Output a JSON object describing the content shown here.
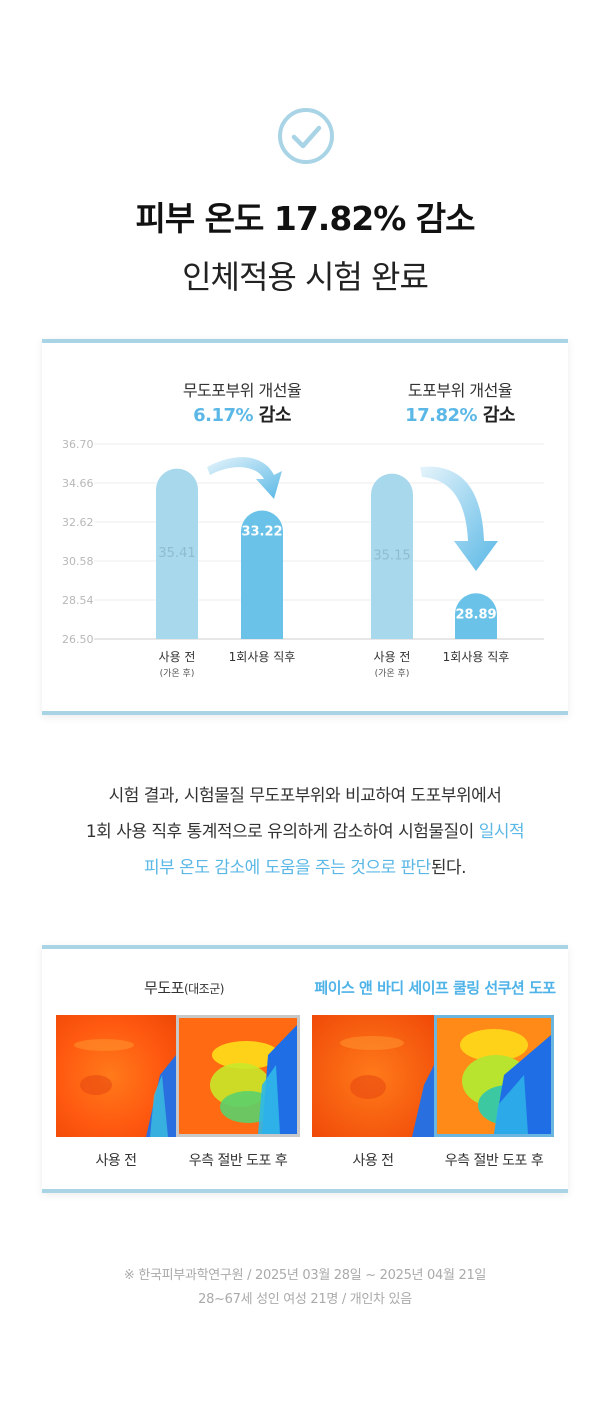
{
  "headline": {
    "line1": "피부 온도 17.82% 감소",
    "line2": "인체적용 시험 완료"
  },
  "chart": {
    "group_left": {
      "title": "무도포부위 개선율",
      "pct": "6.17%",
      "suffix": " 감소"
    },
    "group_right": {
      "title": "도포부위 개선율",
      "pct": "17.82%",
      "suffix": " 감소"
    },
    "captions": {
      "before": "사용 전",
      "before_note": "(가온 후)",
      "after": "1회사용 직후"
    }
  },
  "chart_data": {
    "type": "bar",
    "yticks": [
      "36.70",
      "34.66",
      "32.62",
      "30.58",
      "28.54",
      "26.50"
    ],
    "ylim": [
      26.5,
      36.7
    ],
    "categories": [
      "사용 전 (가온 후)",
      "1회사용 직후",
      "사용 전 (가온 후)",
      "1회사용 직후"
    ],
    "values": [
      35.41,
      33.22,
      35.15,
      28.89
    ],
    "value_labels": [
      "35.41",
      "33.22",
      "35.15",
      "28.89"
    ],
    "colors": [
      "#a8d8ec",
      "#6ac2e8",
      "#a8d8ec",
      "#6ac2e8"
    ],
    "grid": true
  },
  "description": {
    "line1": "시험 결과, 시험물질 무도포부위와 비교하여 도포부위에서",
    "line2_plain": "1회 사용 직후 통계적으로 유의하게 감소하여 시험물질이 ",
    "line2_hl": "일시적",
    "line3_hl": "피부 온도 감소에 도움을 주는 것으로 판단",
    "line3_plain": "된다."
  },
  "thermo": {
    "left_title": "무도포",
    "left_title_small": "(대조군)",
    "right_title": "페이스 앤 바디 세이프 쿨링 선쿠션 도포",
    "captions": [
      "사용 전",
      "우측 절반 도포 후",
      "사용 전",
      "우측 절반 도포 후"
    ]
  },
  "footnote": {
    "line1": "※ 한국피부과학연구원 / 2025년 03월 28일 ~ 2025년 04월 21일",
    "line2": "28~67세 성인 여성 21명 / 개인차 있음"
  }
}
